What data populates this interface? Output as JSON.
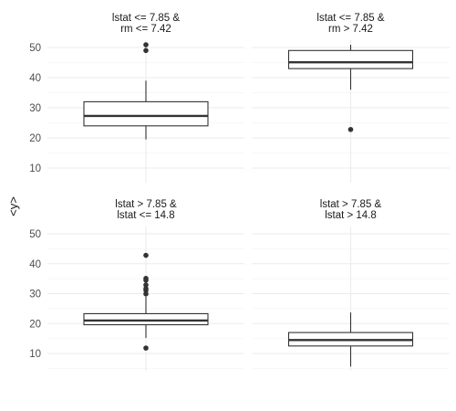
{
  "chart_data": {
    "type": "boxplot",
    "ylabel": "<y>",
    "y_ticks": [
      10,
      20,
      30,
      40,
      50
    ],
    "grid": true,
    "panels": [
      {
        "title_line1": "lstat <= 7.85 &",
        "title_line2": "rm <= 7.42",
        "box": {
          "lower_whisker": 19.5,
          "q1": 24.0,
          "median": 27.3,
          "q3": 32.0,
          "upper_whisker": 39.0
        },
        "outliers": [
          49.0,
          50.9
        ]
      },
      {
        "title_line1": "lstat <= 7.85 &",
        "title_line2": "rm > 7.42",
        "box": {
          "lower_whisker": 36.0,
          "q1": 43.0,
          "median": 45.1,
          "q3": 49.0,
          "upper_whisker": 50.9
        },
        "outliers": [
          22.8
        ]
      },
      {
        "title_line1": "lstat > 7.85 &",
        "title_line2": "lstat <= 14.8",
        "box": {
          "lower_whisker": 15.2,
          "q1": 19.6,
          "median": 21.0,
          "q3": 23.3,
          "upper_whisker": 29.0
        },
        "outliers": [
          11.8,
          29.9,
          31.1,
          31.7,
          32.9,
          34.5,
          35.1,
          42.8
        ]
      },
      {
        "title_line1": "lstat > 7.85 &",
        "title_line2": "lstat > 14.8",
        "box": {
          "lower_whisker": 5.6,
          "q1": 12.5,
          "median": 14.5,
          "q3": 17.0,
          "upper_whisker": 23.7
        },
        "outliers": []
      }
    ]
  }
}
